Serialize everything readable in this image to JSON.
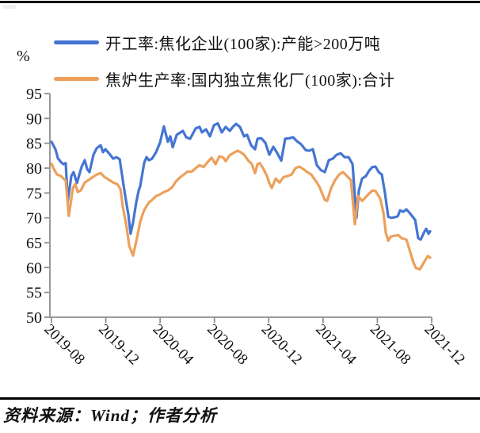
{
  "footer": {
    "text": "资料来源：Wind；作者分析"
  },
  "chart_data": {
    "type": "line",
    "title": "",
    "ylabel": "%",
    "ylim": [
      50,
      95
    ],
    "ytick_step": 5,
    "xlim_months": [
      0,
      28
    ],
    "x_unit": "months since 2019-08",
    "x_tick_months": [
      0,
      4,
      8,
      12,
      16,
      20,
      24,
      28
    ],
    "x_tick_labels": [
      "2019-08",
      "2019-12",
      "2020-04",
      "2020-08",
      "2020-12",
      "2021-04",
      "2021-08",
      "2021-12"
    ],
    "grid": false,
    "legend_position": "top-left",
    "axis_color": "#8f8f8f",
    "line_width": 3.2,
    "series": [
      {
        "name": "开工率:焦化企业(100家):产能>200万吨",
        "color": "#4575d2",
        "points": [
          [
            0,
            85.3
          ],
          [
            0.29,
            83.8
          ],
          [
            0.47,
            82
          ],
          [
            0.7,
            81.2
          ],
          [
            0.88,
            80.8
          ],
          [
            1.05,
            81
          ],
          [
            1.2,
            73.3
          ],
          [
            1.46,
            78.4
          ],
          [
            1.63,
            79.2
          ],
          [
            1.87,
            77
          ],
          [
            2.22,
            80.3
          ],
          [
            2.45,
            81.6
          ],
          [
            2.63,
            79.8
          ],
          [
            2.8,
            79.2
          ],
          [
            3.09,
            82.7
          ],
          [
            3.33,
            84
          ],
          [
            3.62,
            84.6
          ],
          [
            3.79,
            83.2
          ],
          [
            3.97,
            83.8
          ],
          [
            4.26,
            82.9
          ],
          [
            4.55,
            81.9
          ],
          [
            4.78,
            82.2
          ],
          [
            5.02,
            81.8
          ],
          [
            5.25,
            77.6
          ],
          [
            5.43,
            74.4
          ],
          [
            5.66,
            70.7
          ],
          [
            5.83,
            66.8
          ],
          [
            6.01,
            69.1
          ],
          [
            6.24,
            73.1
          ],
          [
            6.42,
            75.5
          ],
          [
            6.53,
            76.3
          ],
          [
            6.83,
            81.1
          ],
          [
            7,
            82.2
          ],
          [
            7.18,
            81.6
          ],
          [
            7.41,
            81.9
          ],
          [
            7.7,
            83.2
          ],
          [
            7.99,
            85.1
          ],
          [
            8.28,
            88.4
          ],
          [
            8.57,
            85.3
          ],
          [
            8.75,
            86.4
          ],
          [
            8.93,
            84.2
          ],
          [
            9.22,
            86.7
          ],
          [
            9.51,
            87.2
          ],
          [
            9.68,
            87.5
          ],
          [
            9.92,
            86.2
          ],
          [
            10.21,
            85.9
          ],
          [
            10.62,
            88
          ],
          [
            10.91,
            88.3
          ],
          [
            11.08,
            87.2
          ],
          [
            11.38,
            87.8
          ],
          [
            11.67,
            86.4
          ],
          [
            11.96,
            88.6
          ],
          [
            12.25,
            89
          ],
          [
            12.54,
            87.2
          ],
          [
            12.83,
            88.3
          ],
          [
            13.13,
            87.5
          ],
          [
            13.36,
            88.3
          ],
          [
            13.59,
            88.9
          ],
          [
            13.88,
            88.3
          ],
          [
            14.18,
            86.4
          ],
          [
            14.41,
            86.7
          ],
          [
            14.7,
            84.6
          ],
          [
            14.99,
            83.8
          ],
          [
            15.17,
            85.9
          ],
          [
            15.46,
            86
          ],
          [
            15.75,
            85.1
          ],
          [
            16.04,
            82.7
          ],
          [
            16.34,
            84.3
          ],
          [
            16.63,
            83
          ],
          [
            16.92,
            81.5
          ],
          [
            17.21,
            85.9
          ],
          [
            17.5,
            86
          ],
          [
            17.79,
            86.2
          ],
          [
            18.09,
            85.4
          ],
          [
            18.38,
            84.8
          ],
          [
            18.73,
            83.6
          ],
          [
            18.96,
            83.5
          ],
          [
            19.25,
            83.8
          ],
          [
            19.54,
            80.6
          ],
          [
            19.84,
            79.6
          ],
          [
            20.13,
            79.2
          ],
          [
            20.42,
            81.6
          ],
          [
            20.71,
            81.9
          ],
          [
            21,
            82.7
          ],
          [
            21.3,
            83
          ],
          [
            21.59,
            82.2
          ],
          [
            21.88,
            82.2
          ],
          [
            22.17,
            80.8
          ],
          [
            22.46,
            70
          ],
          [
            22.64,
            75.5
          ],
          [
            22.87,
            77.9
          ],
          [
            23.16,
            78.4
          ],
          [
            23.4,
            79.5
          ],
          [
            23.63,
            80.2
          ],
          [
            23.86,
            80.3
          ],
          [
            24.1,
            79.2
          ],
          [
            24.33,
            78.7
          ],
          [
            24.56,
            75
          ],
          [
            24.8,
            70.2
          ],
          [
            25.03,
            70
          ],
          [
            25.26,
            70.1
          ],
          [
            25.5,
            70.3
          ],
          [
            25.67,
            71.5
          ],
          [
            25.9,
            71.2
          ],
          [
            26.14,
            71.7
          ],
          [
            26.37,
            71
          ],
          [
            26.6,
            70.2
          ],
          [
            26.78,
            69.6
          ],
          [
            27.01,
            65.9
          ],
          [
            27.19,
            65.6
          ],
          [
            27.42,
            67
          ],
          [
            27.6,
            67.8
          ],
          [
            27.77,
            66.8
          ],
          [
            27.89,
            67.3
          ]
        ]
      },
      {
        "name": "焦炉生产率:国内独立焦化厂(100家):合计",
        "color": "#eca05a",
        "points": [
          [
            0,
            80.9
          ],
          [
            0.18,
            79.8
          ],
          [
            0.41,
            78.7
          ],
          [
            0.7,
            78.4
          ],
          [
            0.88,
            77.9
          ],
          [
            1.05,
            77.5
          ],
          [
            1.28,
            70.4
          ],
          [
            1.58,
            76
          ],
          [
            1.75,
            76.8
          ],
          [
            1.93,
            75.2
          ],
          [
            2.16,
            75.5
          ],
          [
            2.45,
            77.1
          ],
          [
            2.74,
            77.6
          ],
          [
            3.03,
            78.2
          ],
          [
            3.33,
            78.7
          ],
          [
            3.62,
            79
          ],
          [
            3.91,
            78.2
          ],
          [
            4.26,
            77.6
          ],
          [
            4.55,
            77.1
          ],
          [
            4.84,
            76.8
          ],
          [
            5.08,
            75.8
          ],
          [
            5.25,
            72.3
          ],
          [
            5.54,
            68
          ],
          [
            5.72,
            64.4
          ],
          [
            6.01,
            62.4
          ],
          [
            6.3,
            66
          ],
          [
            6.53,
            69.1
          ],
          [
            6.71,
            70.7
          ],
          [
            6.88,
            71.8
          ],
          [
            7.18,
            73.1
          ],
          [
            7.41,
            73.6
          ],
          [
            7.7,
            74.4
          ],
          [
            7.99,
            74.7
          ],
          [
            8.28,
            75.2
          ],
          [
            8.57,
            75.5
          ],
          [
            8.87,
            76.1
          ],
          [
            9.16,
            77.3
          ],
          [
            9.45,
            78.1
          ],
          [
            9.74,
            78.7
          ],
          [
            10.03,
            79.3
          ],
          [
            10.33,
            79.3
          ],
          [
            10.62,
            80
          ],
          [
            10.91,
            80.6
          ],
          [
            11.2,
            80.2
          ],
          [
            11.49,
            81.2
          ],
          [
            11.79,
            82.1
          ],
          [
            12.08,
            80.8
          ],
          [
            12.37,
            82.4
          ],
          [
            12.66,
            82.1
          ],
          [
            12.83,
            81.4
          ],
          [
            13.13,
            82.6
          ],
          [
            13.42,
            83.1
          ],
          [
            13.71,
            83.5
          ],
          [
            14,
            83.1
          ],
          [
            14.18,
            82.7
          ],
          [
            14.47,
            81.6
          ],
          [
            14.76,
            80.8
          ],
          [
            14.99,
            79
          ],
          [
            15.17,
            80.8
          ],
          [
            15.34,
            81
          ],
          [
            15.58,
            80
          ],
          [
            15.87,
            78.4
          ],
          [
            16.04,
            77
          ],
          [
            16.22,
            76
          ],
          [
            16.51,
            77.9
          ],
          [
            16.8,
            77.1
          ],
          [
            17.09,
            78.2
          ],
          [
            17.38,
            78.4
          ],
          [
            17.68,
            78.7
          ],
          [
            17.97,
            80
          ],
          [
            18.26,
            80.3
          ],
          [
            18.55,
            79.8
          ],
          [
            18.84,
            79.2
          ],
          [
            19.13,
            78.7
          ],
          [
            19.54,
            77.1
          ],
          [
            19.72,
            76.3
          ],
          [
            19.95,
            74.8
          ],
          [
            20.13,
            73.6
          ],
          [
            20.3,
            73.4
          ],
          [
            20.6,
            76
          ],
          [
            20.89,
            77.6
          ],
          [
            21.18,
            78.7
          ],
          [
            21.47,
            79.2
          ],
          [
            21.76,
            78.4
          ],
          [
            22.05,
            77.6
          ],
          [
            22.34,
            68.7
          ],
          [
            22.58,
            74.4
          ],
          [
            22.87,
            73.4
          ],
          [
            23.16,
            74.2
          ],
          [
            23.4,
            74.9
          ],
          [
            23.63,
            75.5
          ],
          [
            23.86,
            75.4
          ],
          [
            24.21,
            73.9
          ],
          [
            24.45,
            71
          ],
          [
            24.62,
            67
          ],
          [
            24.8,
            65.4
          ],
          [
            24.97,
            66.2
          ],
          [
            25.26,
            66.4
          ],
          [
            25.55,
            66.5
          ],
          [
            25.79,
            65.9
          ],
          [
            26.14,
            65.6
          ],
          [
            26.43,
            63
          ],
          [
            26.66,
            61
          ],
          [
            26.84,
            59.9
          ],
          [
            27.13,
            59.6
          ],
          [
            27.42,
            61
          ],
          [
            27.71,
            62.3
          ],
          [
            27.89,
            62
          ]
        ]
      }
    ]
  }
}
